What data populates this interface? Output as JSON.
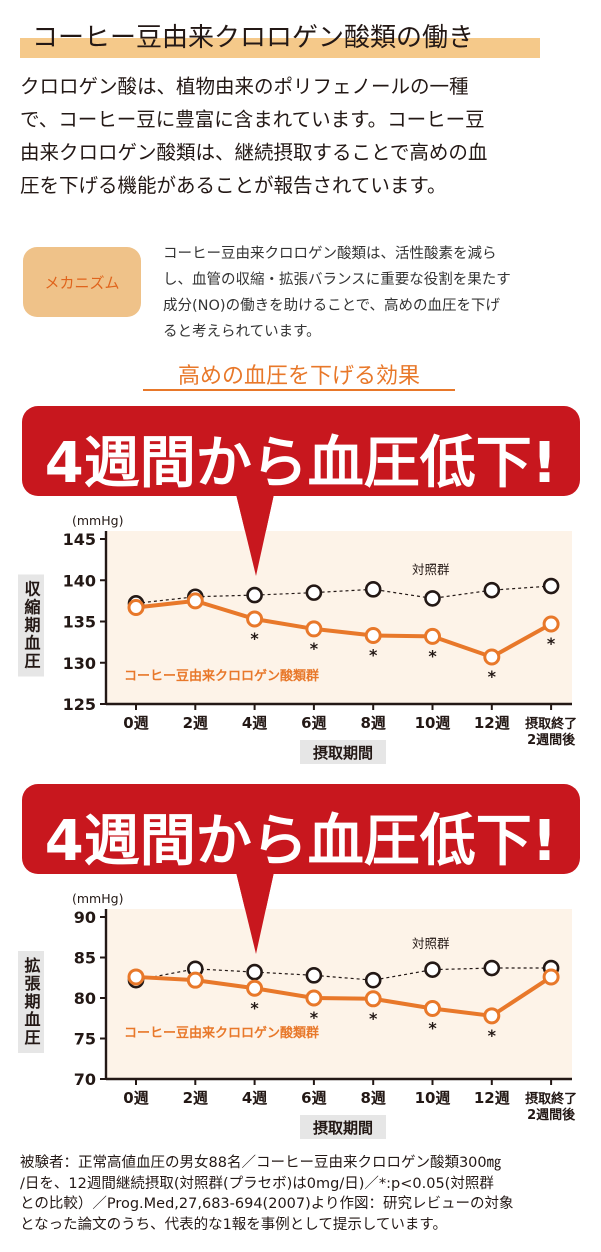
{
  "header": {
    "title": "コーヒー豆由来クロロゲン酸類の働き"
  },
  "intro": {
    "text": "クロロゲン酸は、植物由来のポリフェノールの一種\nで、コーヒー豆に豊富に含まれています。コーヒー豆\n由来クロロゲン酸類は、継続摂取することで高めの血\n圧を下げる機能があることが報告されています。"
  },
  "mechanism": {
    "badge": "メカニズム",
    "text": "コーヒー豆由来クロロゲン酸類は、活性酸素を減ら\nし、血管の収縮・拡張バランスに重要な役割を果たす\n成分(NO)の働きを助けることで、高めの血圧を下げ\nると考えられています。"
  },
  "effect_title": "高めの血圧を下げる効果",
  "colors": {
    "accent": "#e8782a",
    "banner": "#c8171e",
    "plot_bg": "#fdf3e8",
    "highlight": "#f5c98a"
  },
  "chart_data": [
    {
      "type": "line",
      "banner": "4週間から血圧低下!",
      "unit": "(mmHg)",
      "ylabel": "収縮期血圧",
      "xlabel": "摂取期間",
      "categories": [
        "0週",
        "2週",
        "4週",
        "6週",
        "8週",
        "10週",
        "12週",
        "摂取終了\n2週間後"
      ],
      "ylim": [
        125,
        145
      ],
      "yticks": [
        125,
        130,
        135,
        140,
        145
      ],
      "grid": false,
      "series": [
        {
          "name": "対照群",
          "style": "dashed-open-circle",
          "color": "#231815",
          "values": [
            137.2,
            138.0,
            138.2,
            138.5,
            138.9,
            137.8,
            138.8,
            139.3
          ]
        },
        {
          "name": "コーヒー豆由来クロロゲン酸類群",
          "style": "solid-filled-circle",
          "color": "#e8782a",
          "values": [
            136.7,
            137.5,
            135.3,
            134.1,
            133.3,
            133.2,
            130.7,
            134.7
          ]
        }
      ],
      "significance": [
        "",
        "",
        "*",
        "*",
        "*",
        "*",
        "*",
        "*"
      ]
    },
    {
      "type": "line",
      "banner": "4週間から血圧低下!",
      "unit": "(mmHg)",
      "ylabel": "拡張期血圧",
      "xlabel": "摂取期間",
      "categories": [
        "0週",
        "2週",
        "4週",
        "6週",
        "8週",
        "10週",
        "12週",
        "摂取終了\n2週間後"
      ],
      "ylim": [
        70,
        90
      ],
      "yticks": [
        70,
        75,
        80,
        85,
        90
      ],
      "grid": false,
      "series": [
        {
          "name": "対照群",
          "style": "dashed-open-circle",
          "color": "#231815",
          "values": [
            82.2,
            83.6,
            83.2,
            82.8,
            82.2,
            83.5,
            83.7,
            83.7
          ]
        },
        {
          "name": "コーヒー豆由来クロロゲン酸類群",
          "style": "solid-filled-circle",
          "color": "#e8782a",
          "values": [
            82.6,
            82.2,
            81.2,
            80.0,
            79.9,
            78.7,
            77.8,
            82.6
          ]
        }
      ],
      "significance": [
        "",
        "",
        "*",
        "*",
        "*",
        "*",
        "*",
        ""
      ]
    }
  ],
  "footnote": {
    "text": "被験者：正常高値血圧の男女88名／コーヒー豆由来クロロゲン酸類300㎎\n/日を、12週間継続摂取(対照群(プラセボ)は0mg/日)／*:p<0.05(対照群\nとの比較）／Prog.Med,27,683-694(2007)より作図：研究レビューの対象\nとなった論文のうち、代表的な1報を事例として提示しています。"
  }
}
